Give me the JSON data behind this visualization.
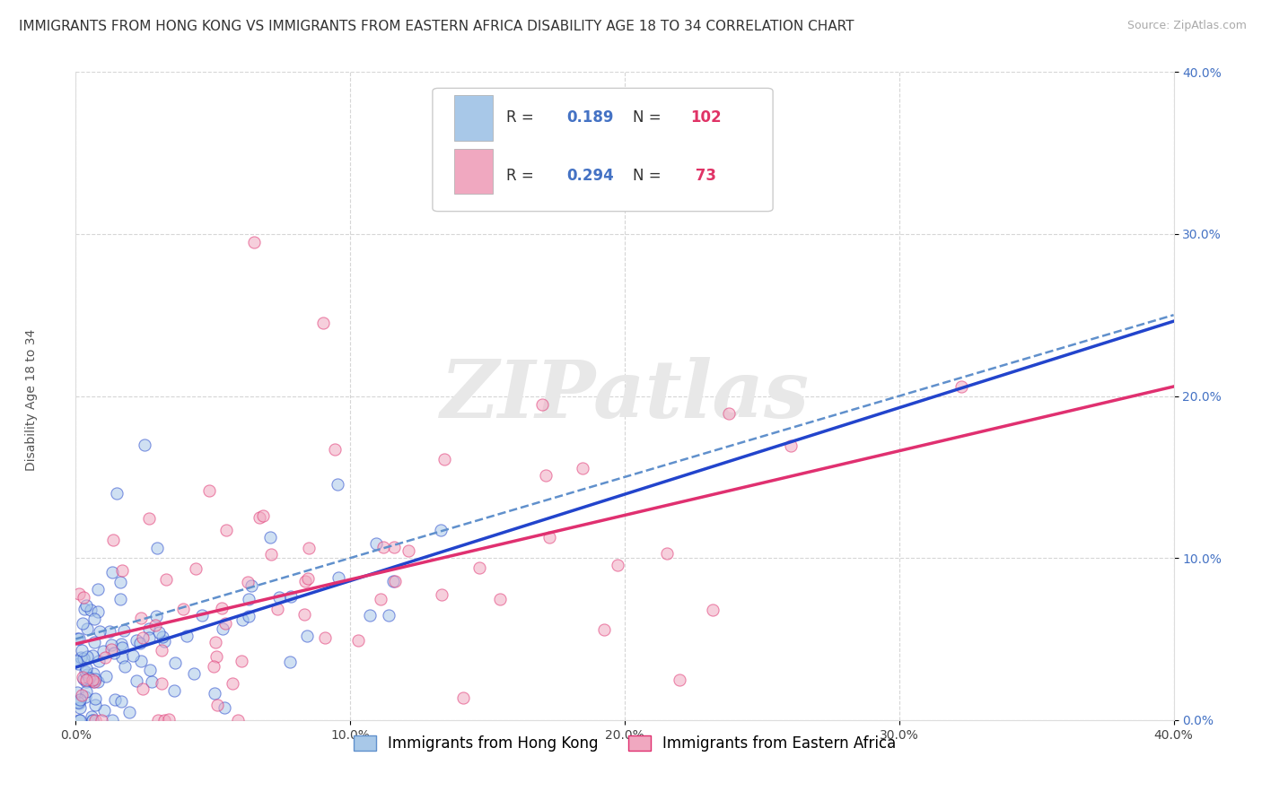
{
  "title": "IMMIGRANTS FROM HONG KONG VS IMMIGRANTS FROM EASTERN AFRICA DISABILITY AGE 18 TO 34 CORRELATION CHART",
  "source": "Source: ZipAtlas.com",
  "ylabel": "Disability Age 18 to 34",
  "legend_label_1": "Immigrants from Hong Kong",
  "legend_label_2": "Immigrants from Eastern Africa",
  "r1": 0.189,
  "n1": 102,
  "r2": 0.294,
  "n2": 73,
  "xlim": [
    0.0,
    0.4
  ],
  "ylim": [
    0.0,
    0.4
  ],
  "xticks": [
    0.0,
    0.1,
    0.2,
    0.3,
    0.4
  ],
  "yticks": [
    0.0,
    0.1,
    0.2,
    0.3,
    0.4
  ],
  "color1": "#a8c8e8",
  "color2": "#f0a8c0",
  "trendline1_color": "#2244cc",
  "trendline2_color": "#e03070",
  "dashed_color": "#6090cc",
  "background_color": "#ffffff",
  "seed": 42,
  "title_fontsize": 11,
  "source_fontsize": 9,
  "axis_label_fontsize": 10,
  "tick_fontsize": 10,
  "legend_fontsize": 12
}
